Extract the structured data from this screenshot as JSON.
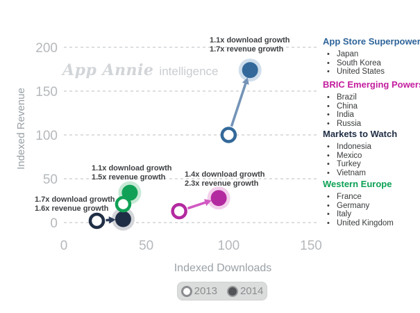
{
  "watermark": {
    "brand": "App Annie",
    "suffix": "intelligence"
  },
  "chart_data": {
    "type": "scatter",
    "xlabel": "Indexed Downloads",
    "ylabel": "Indexed Revenue",
    "xlim": [
      0,
      150
    ],
    "ylim": [
      0,
      200
    ],
    "xticks": [
      0,
      50,
      100,
      150
    ],
    "yticks": [
      0,
      50,
      100,
      150,
      200
    ],
    "grid": "horizontal dashed gridlines",
    "legend_position": "right",
    "series": [
      {
        "name": "App Store Superpowers",
        "color": "#33699a",
        "halo": "#cfdeec",
        "arrow": "#7494b7",
        "points": {
          "2013": {
            "x": 100,
            "y": 100
          },
          "2014": {
            "x": 113,
            "y": 174
          }
        },
        "annotation": [
          "1.1x download growth",
          "1.7x revenue growth"
        ]
      },
      {
        "name": "BRIC Emerging Powers",
        "color": "#b32aa0",
        "halo": "#f3cfec",
        "arrow": "#d159c2",
        "points": {
          "2013": {
            "x": 70,
            "y": 13
          },
          "2014": {
            "x": 94,
            "y": 28
          }
        },
        "annotation": [
          "1.4x download growth",
          "2.3x revenue growth"
        ]
      },
      {
        "name": "Markets to Watch",
        "color": "#202e45",
        "halo": "#d3d5d9",
        "arrow": "#2b3c59",
        "points": {
          "2013": {
            "x": 20,
            "y": 2
          },
          "2014": {
            "x": 36,
            "y": 4
          }
        },
        "annotation": [
          "1.7x download growth",
          "1.6x revenue growth"
        ]
      },
      {
        "name": "Western Europe",
        "color": "#11a156",
        "halo": "#c7e9d5",
        "arrow": "#11a156",
        "points": {
          "2013": {
            "x": 36,
            "y": 21
          },
          "2014": {
            "x": 40,
            "y": 34
          }
        },
        "annotation": [
          "1.1x download growth",
          "1.5x revenue growth"
        ]
      }
    ],
    "year_legend": [
      {
        "label": "2013",
        "style": "open"
      },
      {
        "label": "2014",
        "style": "filled"
      }
    ]
  },
  "legend": {
    "groups": [
      {
        "label": "App Store Superpowers",
        "color": "#2d649a",
        "items": [
          "Japan",
          "South Korea",
          "United States"
        ]
      },
      {
        "label": "BRIC Emerging Powers",
        "color": "#c31d9e",
        "items": [
          "Brazil",
          "China",
          "India",
          "Russia"
        ]
      },
      {
        "label": "Markets to Watch",
        "color": "#202e45",
        "items": [
          "Indonesia",
          "Mexico",
          "Turkey",
          "Vietnam"
        ]
      },
      {
        "label": "Western Europe",
        "color": "#0ca154",
        "items": [
          "France",
          "Germany",
          "Italy",
          "United Kingdom"
        ]
      }
    ],
    "bullet": "•"
  }
}
